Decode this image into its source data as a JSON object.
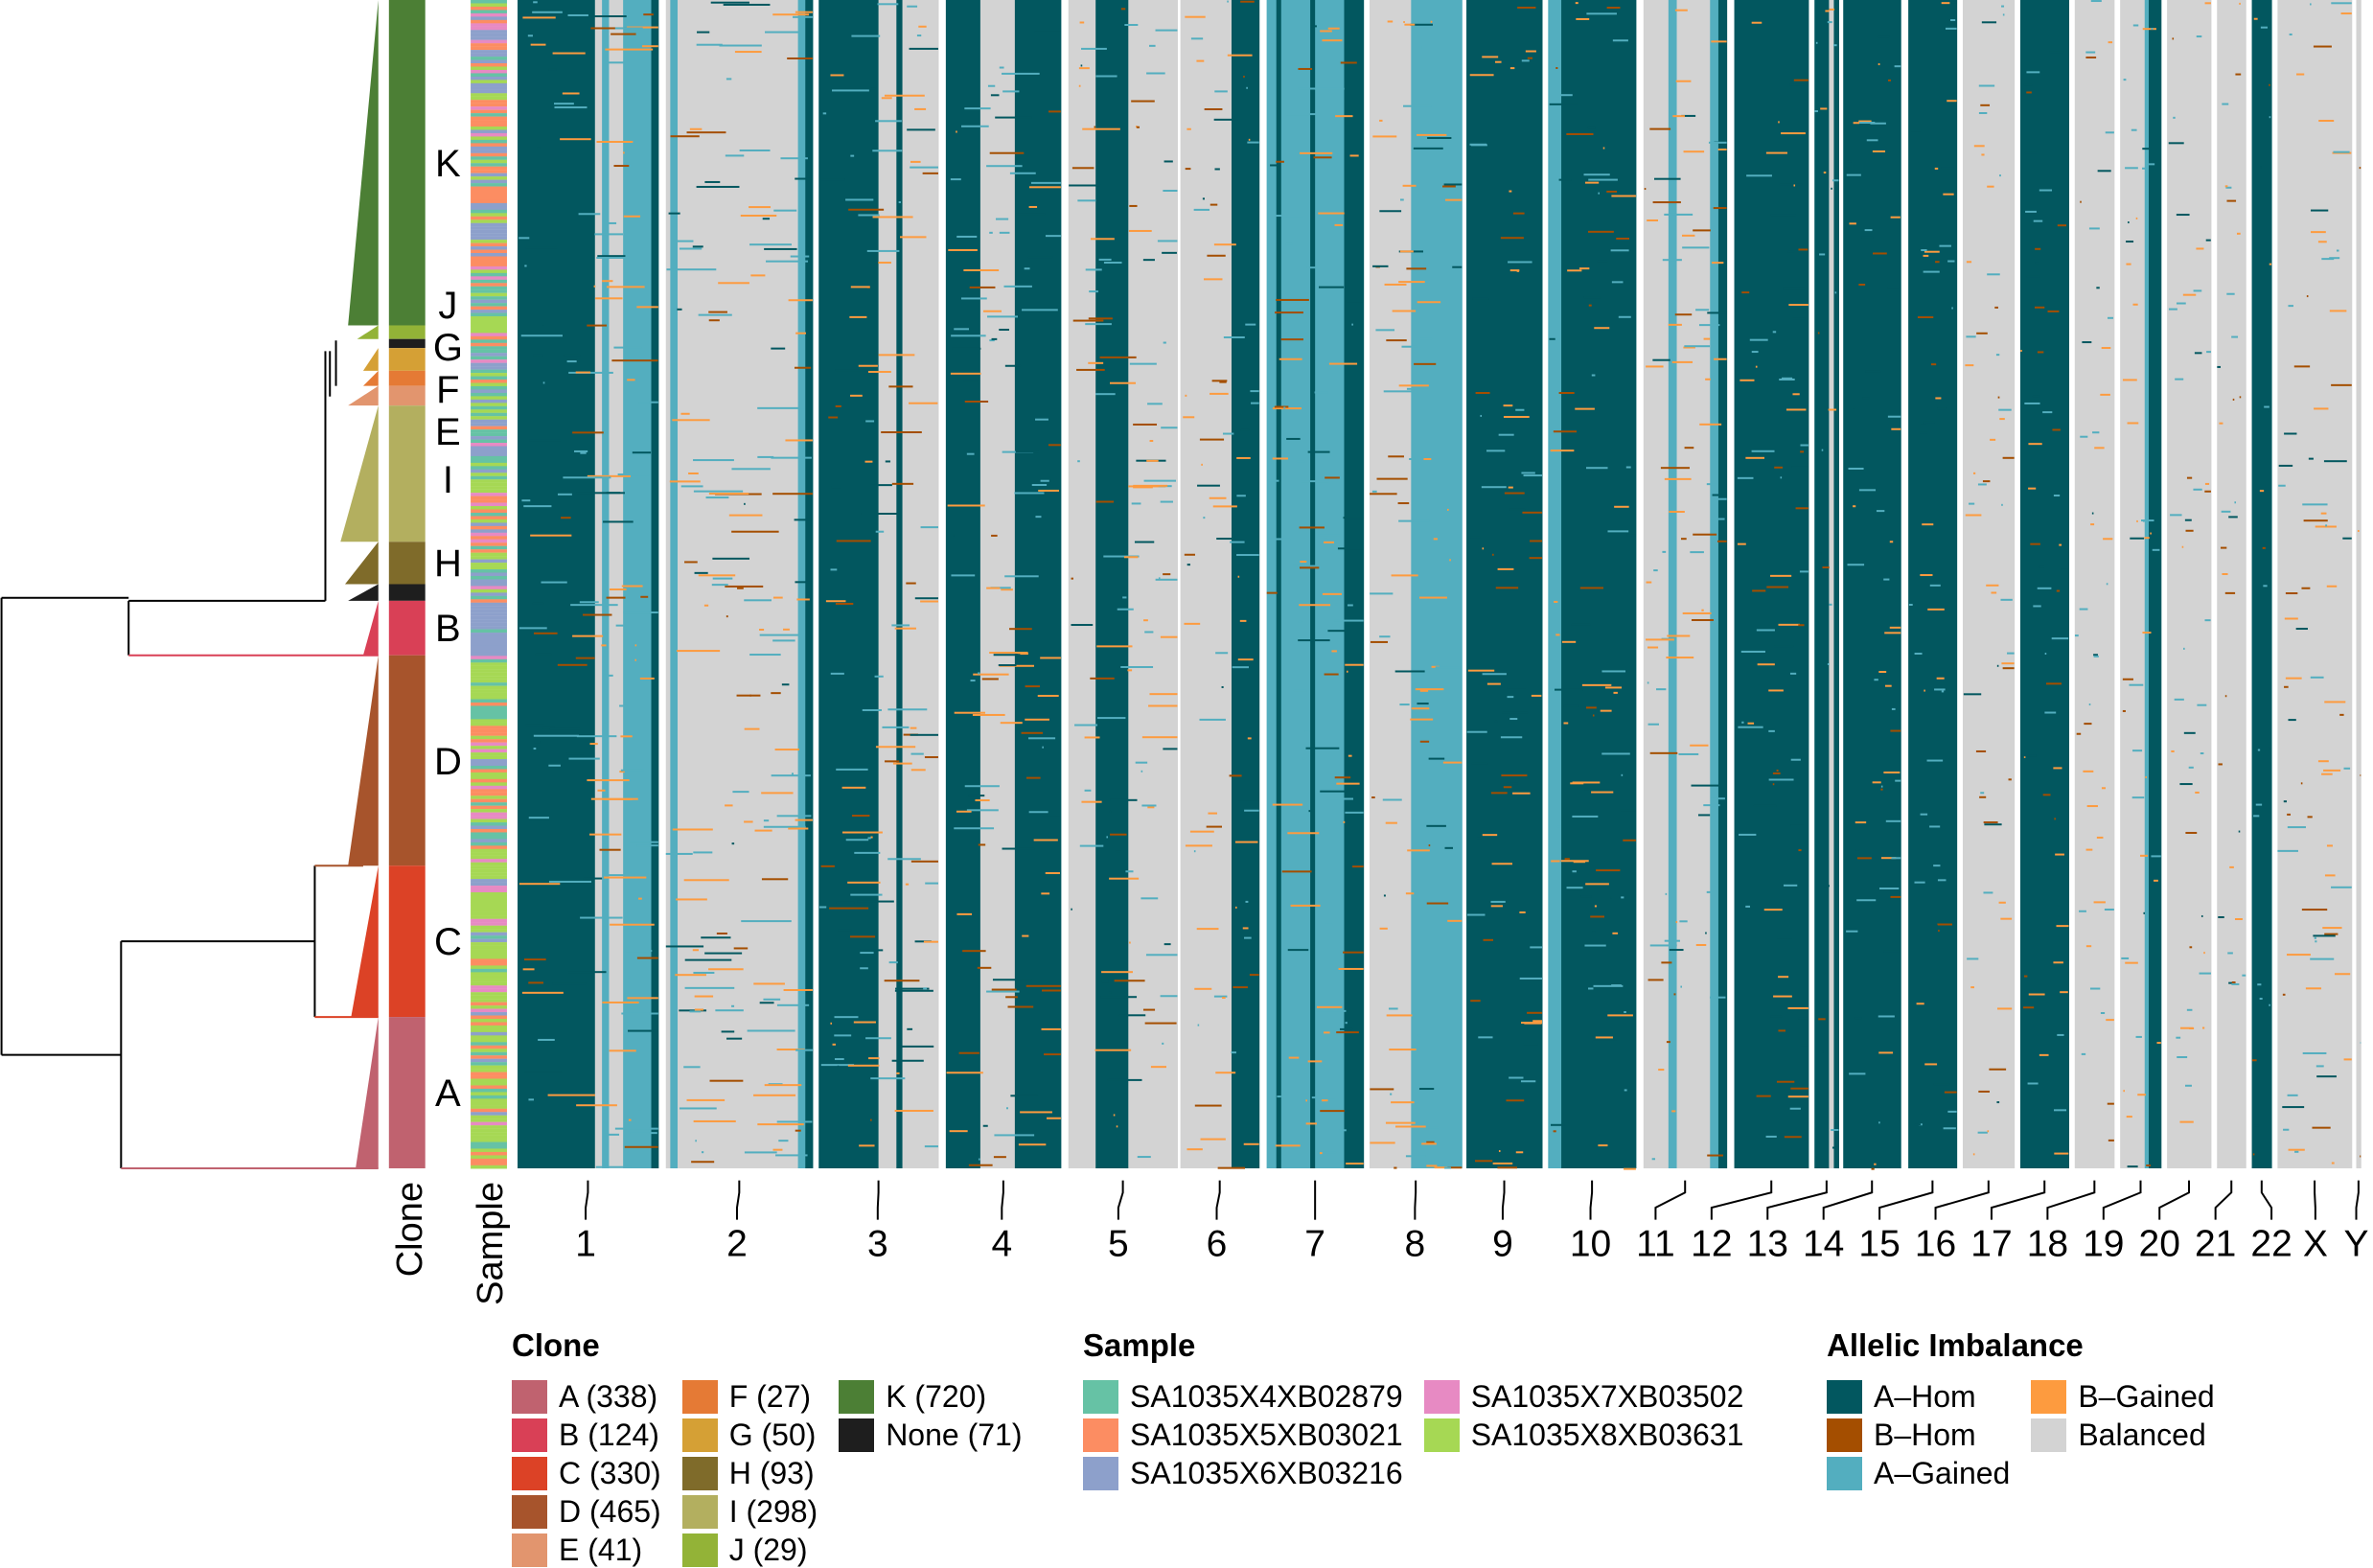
{
  "chart_data": {
    "type": "heatmap",
    "row_annotations": {
      "clone_label": "Clone",
      "sample_label": "Sample",
      "clone_row_labels": [
        "K",
        "J",
        "G",
        "F",
        "E",
        "I",
        "H",
        "B",
        "D",
        "C",
        "A"
      ]
    },
    "columns": {
      "chromosomes": [
        "1",
        "2",
        "3",
        "4",
        "5",
        "6",
        "7",
        "8",
        "9",
        "10",
        "11",
        "12",
        "13",
        "14",
        "15",
        "16",
        "17",
        "18",
        "19",
        "20",
        "21",
        "22",
        "X",
        "Y"
      ]
    },
    "legends": {
      "clone": {
        "title": "Clone",
        "items": [
          {
            "label": "A (338)",
            "color": "#C0626F"
          },
          {
            "label": "B (124)",
            "color": "#D94056"
          },
          {
            "label": "C (330)",
            "color": "#DC4226"
          },
          {
            "label": "D (465)",
            "color": "#A7542C"
          },
          {
            "label": "E (41)",
            "color": "#E2956E"
          },
          {
            "label": "F (27)",
            "color": "#E57A35"
          },
          {
            "label": "G (50)",
            "color": "#D5A035"
          },
          {
            "label": "H (93)",
            "color": "#7F6B2A"
          },
          {
            "label": "I (298)",
            "color": "#B3AF5F"
          },
          {
            "label": "J (29)",
            "color": "#93B337"
          },
          {
            "label": "K (720)",
            "color": "#4C7F35"
          },
          {
            "label": "None (71)",
            "color": "#1E1E1E"
          }
        ]
      },
      "sample": {
        "title": "Sample",
        "items": [
          {
            "label": "SA1035X4XB02879",
            "color": "#66C2A5"
          },
          {
            "label": "SA1035X5XB03021",
            "color": "#FC8D62"
          },
          {
            "label": "SA1035X6XB03216",
            "color": "#8DA0CB"
          },
          {
            "label": "SA1035X7XB03502",
            "color": "#E78AC3"
          },
          {
            "label": "SA1035X8XB03631",
            "color": "#A6D854"
          }
        ]
      },
      "allelic_imbalance": {
        "title": "Allelic Imbalance",
        "items": [
          {
            "label": "A–Hom",
            "color": "#02575F"
          },
          {
            "label": "B–Hom",
            "color": "#A44E00"
          },
          {
            "label": "A–Gained",
            "color": "#53AEBF"
          },
          {
            "label": "B–Gained",
            "color": "#FD9B3F"
          },
          {
            "label": "Balanced",
            "color": "#D3D3D3"
          }
        ]
      }
    }
  }
}
